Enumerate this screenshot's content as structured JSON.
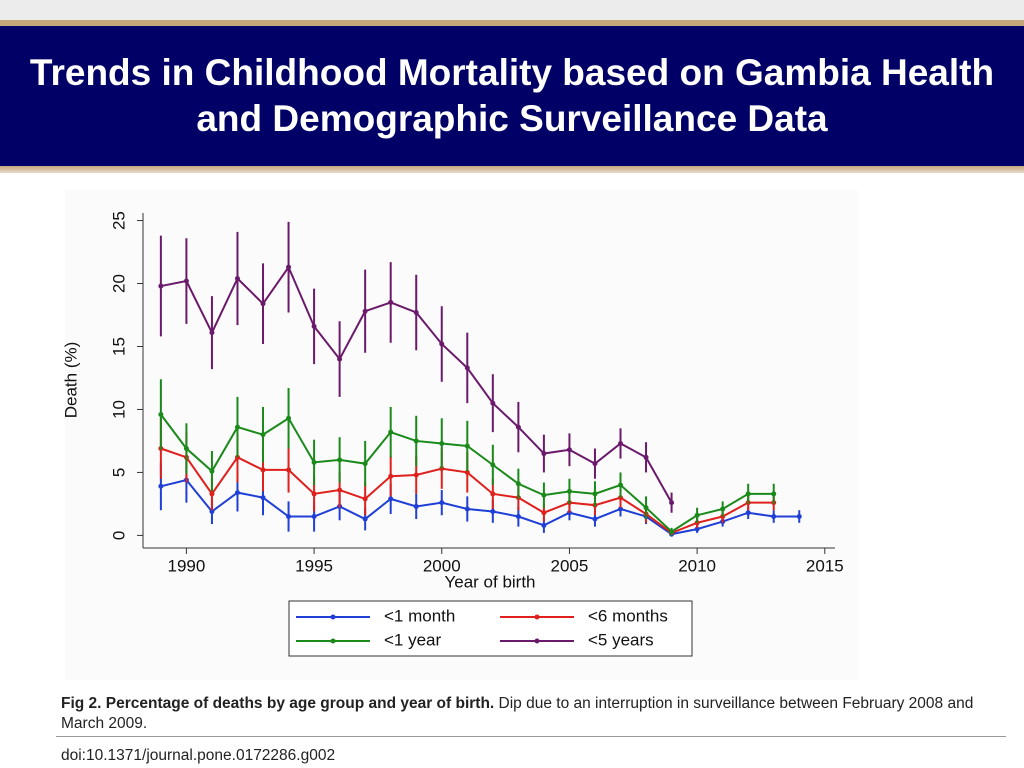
{
  "slide": {
    "title": "Trends in Childhood Mortality based on Gambia Health and Demographic Surveillance Data"
  },
  "chart_data": {
    "type": "line",
    "xlabel": "Year of birth",
    "ylabel": "Death (%)",
    "xlim": [
      1988.3,
      2015.4
    ],
    "ylim": [
      -1,
      25.6
    ],
    "xticks": [
      1990,
      1995,
      2000,
      2005,
      2010,
      2015
    ],
    "yticks": [
      0,
      5,
      10,
      15,
      20,
      25
    ],
    "grid": false,
    "legend_position": "bottom",
    "series": [
      {
        "name": "<1 month",
        "color": "#1f3fd6",
        "x": [
          1989,
          1990,
          1991,
          1992,
          1993,
          1994,
          1995,
          1996,
          1997,
          1998,
          1999,
          2000,
          2001,
          2002,
          2003,
          2004,
          2005,
          2006,
          2007,
          2008,
          2009,
          2010,
          2011,
          2012,
          2013,
          2014
        ],
        "values": [
          3.9,
          4.4,
          1.9,
          3.4,
          3.0,
          1.5,
          1.5,
          2.3,
          1.3,
          2.9,
          2.3,
          2.6,
          2.1,
          1.9,
          1.5,
          0.8,
          1.8,
          1.3,
          2.1,
          1.5,
          0.1,
          0.5,
          1.1,
          1.8,
          1.5,
          1.5
        ],
        "errors": [
          1.9,
          1.8,
          1.0,
          1.5,
          1.4,
          1.2,
          1.2,
          1.1,
          0.9,
          1.2,
          1.0,
          1.0,
          1.0,
          0.9,
          0.8,
          0.6,
          0.6,
          0.6,
          0.6,
          0.6,
          0.2,
          0.3,
          0.4,
          0.5,
          0.5,
          0.5
        ]
      },
      {
        "name": "<6 months",
        "color": "#e0201c",
        "x": [
          1989,
          1990,
          1991,
          1992,
          1993,
          1994,
          1995,
          1996,
          1997,
          1998,
          1999,
          2000,
          2001,
          2002,
          2003,
          2004,
          2005,
          2006,
          2007,
          2008,
          2009,
          2010,
          2011,
          2012,
          2013
        ],
        "values": [
          6.9,
          6.2,
          3.3,
          6.2,
          5.2,
          5.2,
          3.3,
          3.6,
          2.9,
          4.7,
          4.8,
          5.3,
          5.0,
          3.3,
          3.0,
          1.8,
          2.6,
          2.4,
          3.0,
          1.7,
          0.2,
          1.0,
          1.5,
          2.6,
          2.6
        ],
        "errors": [
          2.4,
          2.0,
          1.3,
          2.0,
          1.7,
          1.8,
          1.4,
          1.4,
          1.3,
          1.6,
          1.5,
          1.6,
          1.6,
          1.2,
          1.0,
          0.7,
          0.8,
          0.8,
          0.8,
          0.7,
          0.2,
          0.4,
          0.5,
          0.6,
          0.6
        ]
      },
      {
        "name": "<1 year",
        "color": "#1a8a1a",
        "x": [
          1989,
          1990,
          1991,
          1992,
          1993,
          1994,
          1995,
          1996,
          1997,
          1998,
          1999,
          2000,
          2001,
          2002,
          2003,
          2004,
          2005,
          2006,
          2007,
          2008,
          2009,
          2010,
          2011,
          2012,
          2013
        ],
        "values": [
          9.6,
          6.9,
          5.1,
          8.6,
          8.0,
          9.3,
          5.8,
          6.0,
          5.7,
          8.2,
          7.5,
          7.3,
          7.1,
          5.6,
          4.1,
          3.2,
          3.5,
          3.3,
          4.0,
          2.2,
          0.3,
          1.6,
          2.1,
          3.3,
          3.3
        ],
        "errors": [
          2.8,
          2.0,
          1.6,
          2.4,
          2.2,
          2.4,
          1.8,
          1.8,
          1.8,
          2.0,
          2.0,
          2.0,
          2.0,
          1.6,
          1.2,
          1.0,
          1.0,
          1.0,
          1.0,
          0.9,
          0.3,
          0.6,
          0.6,
          0.8,
          0.8
        ]
      },
      {
        "name": "<5 years",
        "color": "#6b1a6b",
        "x": [
          1989,
          1990,
          1991,
          1992,
          1993,
          1994,
          1995,
          1996,
          1997,
          1998,
          1999,
          2000,
          2001,
          2002,
          2003,
          2004,
          2005,
          2006,
          2007,
          2008,
          2009
        ],
        "values": [
          19.8,
          20.2,
          16.1,
          20.4,
          18.4,
          21.3,
          16.6,
          14.0,
          17.8,
          18.5,
          17.7,
          15.2,
          13.3,
          10.5,
          8.6,
          6.5,
          6.8,
          5.7,
          7.3,
          6.2,
          2.6
        ],
        "errors": [
          4.0,
          3.4,
          2.9,
          3.7,
          3.2,
          3.6,
          3.0,
          3.0,
          3.3,
          3.2,
          3.0,
          3.0,
          2.8,
          2.3,
          2.0,
          1.5,
          1.3,
          1.2,
          1.2,
          1.2,
          0.8
        ]
      }
    ]
  },
  "caption": {
    "bold": "Fig 2. Percentage of deaths by age group and year of birth.",
    "text": "Dip due to an interruption in surveillance between February 2008 and March 2009."
  },
  "doi": "doi:10.1371/journal.pone.0172286.g002"
}
